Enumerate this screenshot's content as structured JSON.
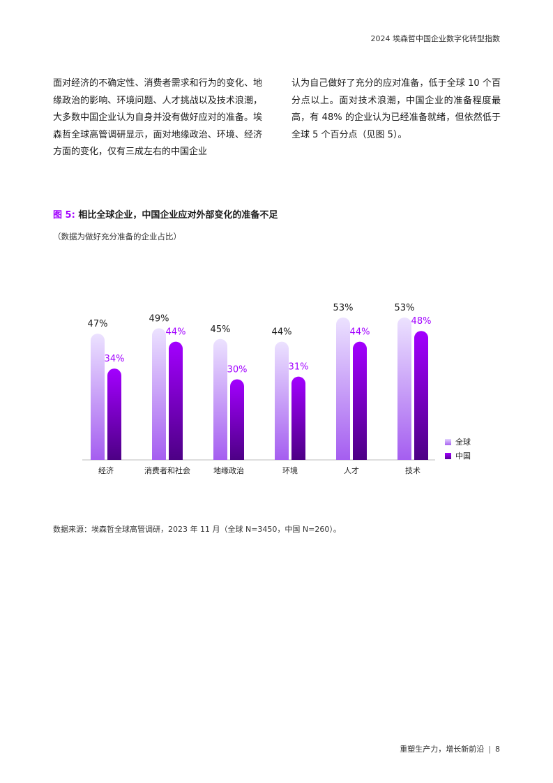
{
  "header": {
    "title": "2024 埃森哲中国企业数字化转型指数"
  },
  "body": {
    "left_column": "面对经济的不确定性、消费者需求和行为的变化、地缘政治的影响、环境问题、人才挑战以及技术浪潮，大多数中国企业认为自身并没有做好应对的准备。埃森哲全球高管调研显示，面对地缘政治、环境、经济方面的变化，仅有三成左右的中国企业",
    "right_column": "认为自己做好了充分的应对准备，低于全球 10 个百分点以上。面对技术浪潮，中国企业的准备程度最高，有 48% 的企业认为已经准备就绪，但依然低于全球 5 个百分点（见图 5）。"
  },
  "figure": {
    "number": "图 5:",
    "title": "相比全球企业，中国企业应对外部变化的准备不足",
    "subtitle": "（数据为做好充分准备的企业占比）"
  },
  "chart_data": {
    "type": "bar",
    "categories": [
      "经济",
      "消费者和社会",
      "地缘政治",
      "环境",
      "人才",
      "技术"
    ],
    "series": [
      {
        "name": "全球",
        "values": [
          47,
          49,
          45,
          44,
          53,
          53
        ],
        "color": "#c9a8f7"
      },
      {
        "name": "中国",
        "values": [
          34,
          44,
          30,
          31,
          44,
          48
        ],
        "color": "#9b00f0"
      }
    ],
    "value_suffix": "%",
    "ylim": [
      0,
      53
    ],
    "legend": "right",
    "grid": false
  },
  "source": "数据来源：埃森哲全球高管调研，2023 年 11 月（全球 N=3450，中国 N=260）。",
  "footer": {
    "text": "重塑生产力，增长新前沿",
    "page": "8"
  }
}
